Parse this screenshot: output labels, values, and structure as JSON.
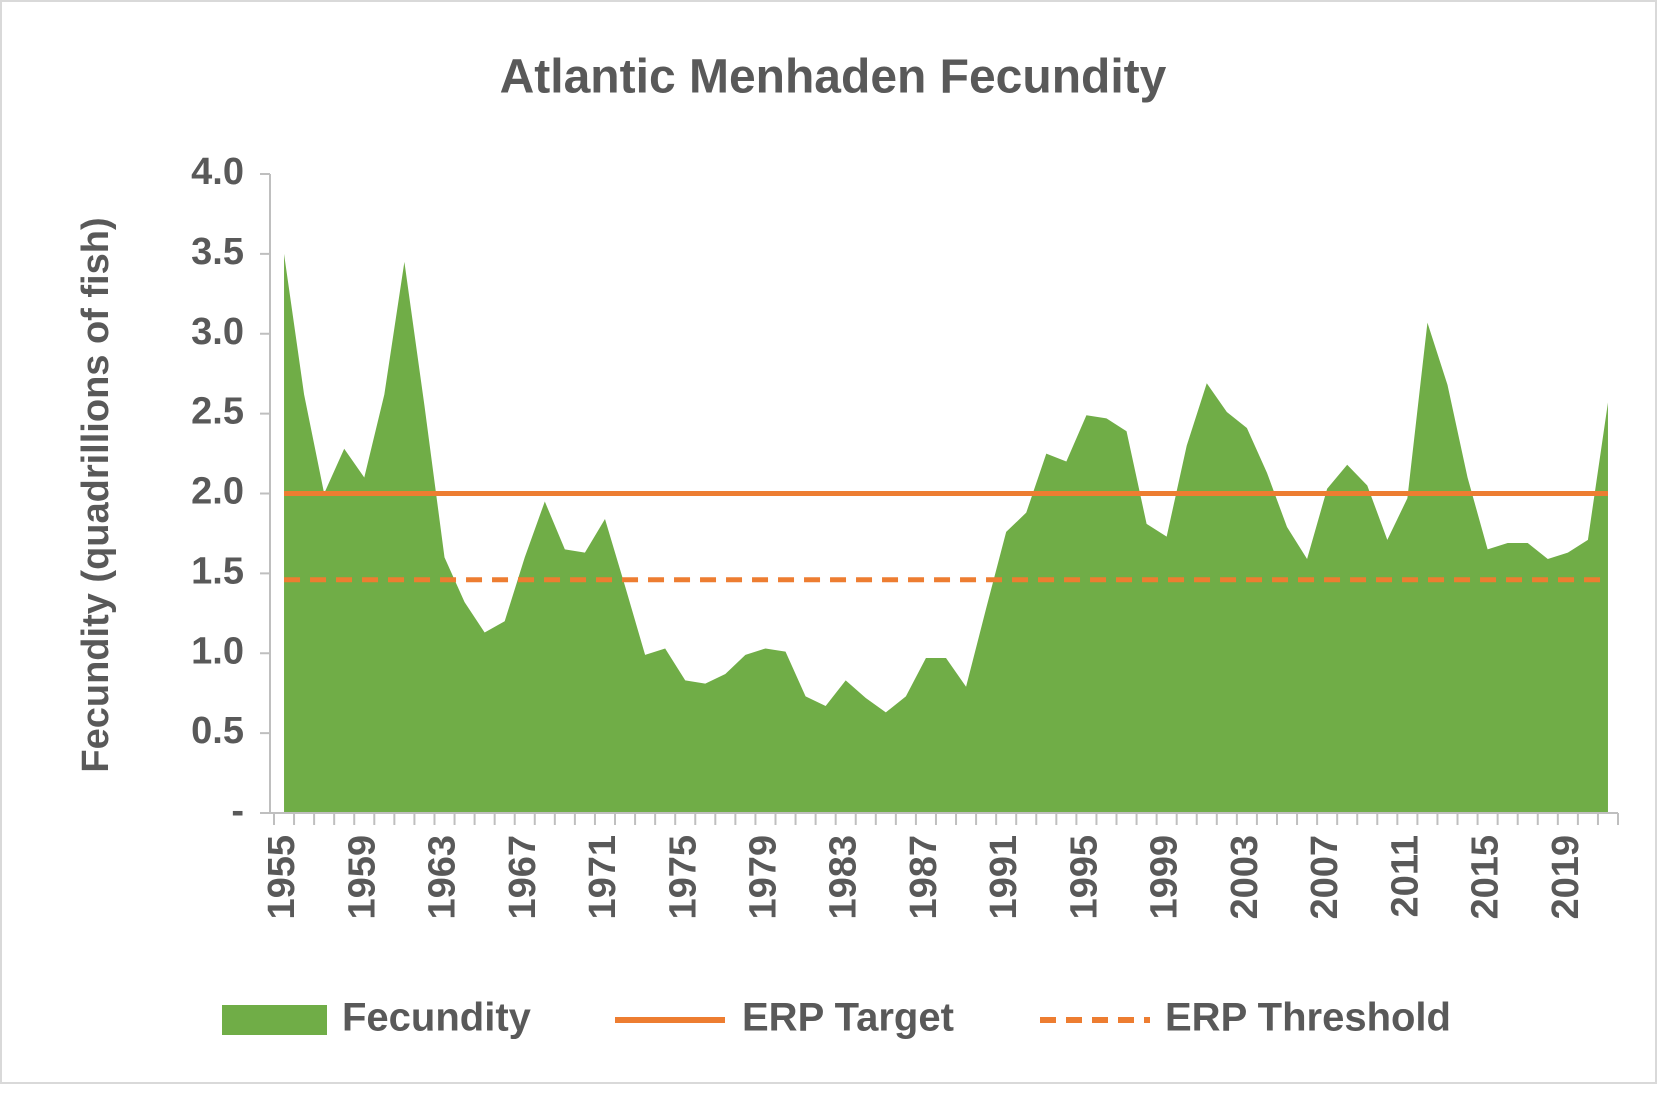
{
  "chart_data": {
    "type": "area",
    "title": "Atlantic Menhaden Fecundity",
    "y_label": "Fecundity (quadrillions of fish)",
    "categories": [
      "1955",
      null,
      null,
      null,
      "1959",
      null,
      null,
      null,
      "1963",
      null,
      null,
      null,
      "1967",
      null,
      null,
      null,
      "1971",
      null,
      null,
      null,
      "1975",
      null,
      null,
      null,
      "1979",
      null,
      null,
      null,
      "1983",
      null,
      null,
      null,
      "1987",
      null,
      null,
      null,
      "1991",
      null,
      null,
      null,
      "1995",
      null,
      null,
      null,
      "1999",
      null,
      null,
      null,
      "2003",
      null,
      null,
      null,
      "2007",
      null,
      null,
      null,
      "2011",
      null,
      null,
      null,
      "2015",
      null,
      null,
      null,
      "2019",
      null,
      null
    ],
    "series": [
      {
        "name": "Fecundity",
        "color": "#70ad47",
        "values": [
          3.5,
          2.62,
          2.0,
          2.28,
          2.1,
          2.62,
          3.45,
          2.55,
          1.6,
          1.32,
          1.13,
          1.2,
          1.6,
          1.95,
          1.65,
          1.63,
          1.84,
          1.42,
          0.99,
          1.03,
          0.83,
          0.81,
          0.87,
          0.99,
          1.03,
          1.01,
          0.73,
          0.67,
          0.83,
          0.72,
          0.63,
          0.73,
          0.97,
          0.97,
          0.79,
          1.28,
          1.76,
          1.88,
          2.25,
          2.2,
          2.49,
          2.47,
          2.39,
          1.81,
          1.73,
          2.3,
          2.69,
          2.51,
          2.41,
          2.13,
          1.79,
          1.59,
          2.03,
          2.18,
          2.05,
          1.71,
          1.97,
          3.07,
          2.68,
          2.1,
          1.65,
          1.69,
          1.69,
          1.59,
          1.63,
          1.71,
          2.57
        ]
      },
      {
        "name": "ERP Target",
        "color": "#ed7d31",
        "value": 2.0,
        "dashed": false
      },
      {
        "name": "ERP Threshold",
        "color": "#ed7d31",
        "value": 1.46,
        "dashed": true
      }
    ],
    "ylim": [
      0,
      4
    ],
    "yticks": [
      {
        "value": 0,
        "label": "-"
      },
      0.5,
      {
        "value": 1,
        "label": "1.0"
      },
      1.5,
      {
        "value": 2,
        "label": "2.0"
      },
      2.5,
      {
        "value": 3,
        "label": "3.0"
      },
      3.5,
      {
        "value": 4,
        "label": "4.0"
      }
    ],
    "grid": false,
    "legend": "bottom"
  }
}
